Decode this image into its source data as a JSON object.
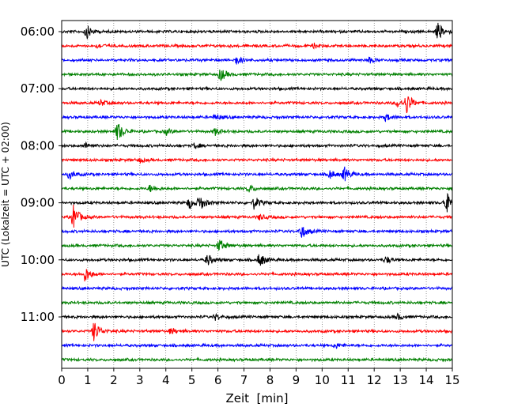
{
  "chart_data": {
    "type": "line",
    "xlabel": "Zeit  [min]",
    "ylabel": "UTC (Lokalzeit = UTC + 02:00)",
    "xlim": [
      0,
      15
    ],
    "x_ticks": [
      0,
      1,
      2,
      3,
      4,
      5,
      6,
      7,
      8,
      9,
      10,
      11,
      12,
      13,
      14,
      15
    ],
    "y_tick_labels": [
      {
        "row": 0,
        "label": "06:00"
      },
      {
        "row": 4,
        "label": "07:00"
      },
      {
        "row": 8,
        "label": "08:00"
      },
      {
        "row": 12,
        "label": "09:00"
      },
      {
        "row": 16,
        "label": "10:00"
      },
      {
        "row": 20,
        "label": "11:00"
      }
    ],
    "grid": "vertical dotted lines at each minute",
    "row_minutes": 15,
    "colors_cycle": [
      "#000000",
      "#ff0000",
      "#0000ff",
      "#008000"
    ],
    "traces": [
      {
        "start": "06:00",
        "color": "#000000",
        "events": [
          {
            "t": 0.95,
            "amp": 1.0
          },
          {
            "t": 14.45,
            "amp": 1.2
          }
        ]
      },
      {
        "start": "06:15",
        "color": "#ff0000",
        "events": [
          {
            "t": 1.4,
            "amp": 0.3
          },
          {
            "t": 9.7,
            "amp": 0.3
          }
        ]
      },
      {
        "start": "06:30",
        "color": "#0000ff",
        "events": [
          {
            "t": 6.7,
            "amp": 0.6
          },
          {
            "t": 11.8,
            "amp": 0.4
          }
        ]
      },
      {
        "start": "06:45",
        "color": "#008000",
        "events": [
          {
            "t": 6.1,
            "amp": 0.9
          }
        ]
      },
      {
        "start": "07:00",
        "color": "#000000",
        "events": []
      },
      {
        "start": "07:15",
        "color": "#ff0000",
        "events": [
          {
            "t": 1.5,
            "amp": 0.4
          },
          {
            "t": 12.9,
            "amp": 0.5
          },
          {
            "t": 13.25,
            "amp": 1.4
          }
        ]
      },
      {
        "start": "07:30",
        "color": "#0000ff",
        "events": [
          {
            "t": 5.9,
            "amp": 0.4
          },
          {
            "t": 12.45,
            "amp": 0.5
          }
        ]
      },
      {
        "start": "07:45",
        "color": "#008000",
        "events": [
          {
            "t": 2.15,
            "amp": 1.4
          },
          {
            "t": 4.0,
            "amp": 0.4
          },
          {
            "t": 5.9,
            "amp": 0.5
          }
        ]
      },
      {
        "start": "08:00",
        "color": "#000000",
        "events": [
          {
            "t": 0.9,
            "amp": 0.4
          },
          {
            "t": 5.1,
            "amp": 0.4
          }
        ]
      },
      {
        "start": "08:15",
        "color": "#ff0000",
        "events": [
          {
            "t": 3.0,
            "amp": 0.3
          }
        ]
      },
      {
        "start": "08:30",
        "color": "#0000ff",
        "events": [
          {
            "t": 0.3,
            "amp": 0.6
          },
          {
            "t": 10.3,
            "amp": 0.6
          },
          {
            "t": 10.85,
            "amp": 1.0
          }
        ]
      },
      {
        "start": "08:45",
        "color": "#008000",
        "events": [
          {
            "t": 3.4,
            "amp": 0.5
          },
          {
            "t": 7.2,
            "amp": 0.5
          }
        ]
      },
      {
        "start": "09:00",
        "color": "#000000",
        "events": [
          {
            "t": 5.3,
            "amp": 1.0
          },
          {
            "t": 4.9,
            "amp": 0.8
          },
          {
            "t": 7.4,
            "amp": 0.9
          },
          {
            "t": 14.75,
            "amp": 1.6
          }
        ]
      },
      {
        "start": "09:15",
        "color": "#ff0000",
        "events": [
          {
            "t": 0.45,
            "amp": 1.7
          },
          {
            "t": 7.6,
            "amp": 0.4
          }
        ]
      },
      {
        "start": "09:30",
        "color": "#0000ff",
        "events": [
          {
            "t": 9.2,
            "amp": 1.0
          }
        ]
      },
      {
        "start": "09:45",
        "color": "#008000",
        "events": [
          {
            "t": 6.05,
            "amp": 0.9
          }
        ]
      },
      {
        "start": "10:00",
        "color": "#000000",
        "events": [
          {
            "t": 5.6,
            "amp": 0.8
          },
          {
            "t": 7.6,
            "amp": 1.0
          },
          {
            "t": 12.45,
            "amp": 0.5
          }
        ]
      },
      {
        "start": "10:15",
        "color": "#ff0000",
        "events": [
          {
            "t": 0.9,
            "amp": 1.1
          }
        ]
      },
      {
        "start": "10:30",
        "color": "#0000ff",
        "events": []
      },
      {
        "start": "10:45",
        "color": "#008000",
        "events": []
      },
      {
        "start": "11:00",
        "color": "#000000",
        "events": [
          {
            "t": 5.9,
            "amp": 0.4
          },
          {
            "t": 12.9,
            "amp": 0.4
          }
        ]
      },
      {
        "start": "11:15",
        "color": "#ff0000",
        "events": [
          {
            "t": 1.25,
            "amp": 1.5
          },
          {
            "t": 4.2,
            "amp": 0.4
          }
        ]
      },
      {
        "start": "11:30",
        "color": "#0000ff",
        "events": [
          {
            "t": 10.5,
            "amp": 0.4
          }
        ]
      },
      {
        "start": "11:45",
        "color": "#008000",
        "events": []
      }
    ]
  }
}
